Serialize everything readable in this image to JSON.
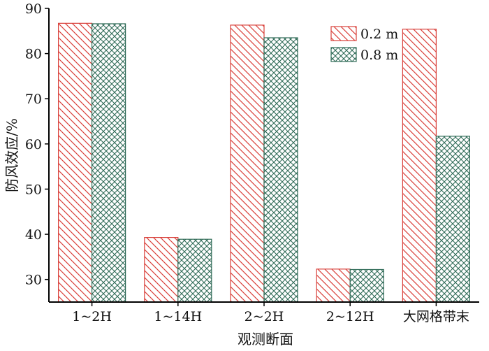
{
  "chart_data": {
    "type": "bar",
    "categories": [
      "1~2H",
      "1~14H",
      "2~2H",
      "2~12H",
      "大网格带末"
    ],
    "series": [
      {
        "name": "0.2 m",
        "values": [
          86.7,
          39.3,
          86.3,
          32.3,
          85.4
        ],
        "color": "#d9403a",
        "pattern": "diagonal-hatch"
      },
      {
        "name": "0.8 m",
        "values": [
          86.6,
          38.9,
          83.5,
          32.2,
          61.7
        ],
        "color": "#2f6b57",
        "pattern": "cross-hatch"
      }
    ],
    "xlabel": "观测断面",
    "ylabel": "防风效应/%",
    "ylim": [
      25,
      90
    ],
    "yticks": [
      30,
      40,
      50,
      60,
      70,
      80,
      90
    ],
    "grid": false,
    "legend_position": "top-right"
  }
}
